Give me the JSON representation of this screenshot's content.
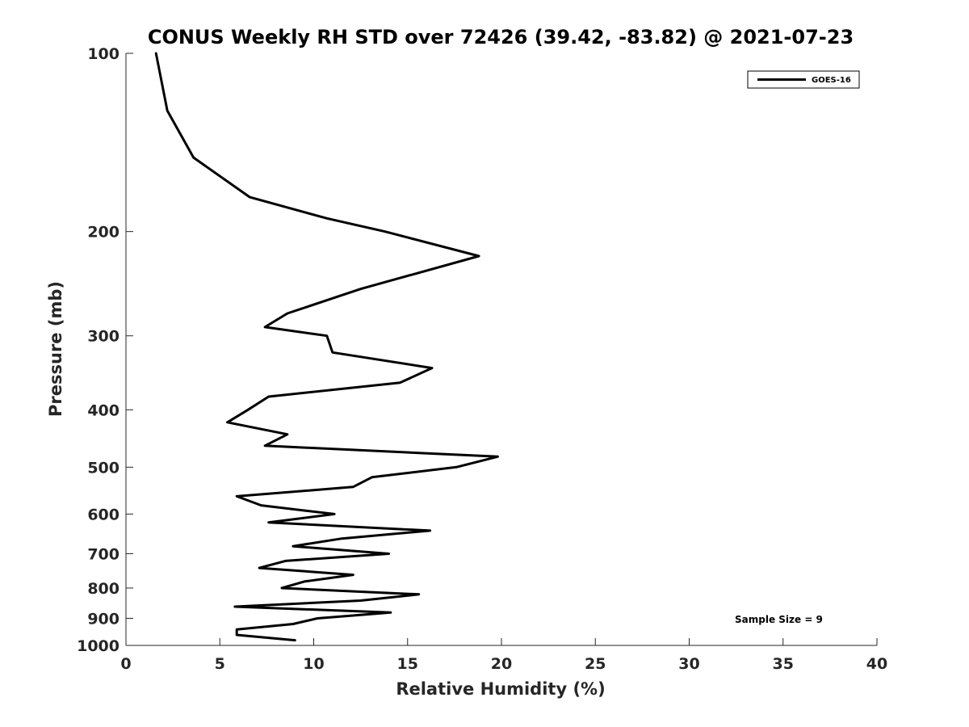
{
  "chart_data": {
    "type": "line",
    "title": "CONUS Weekly RH STD over 72426 (39.42, -83.82) @ 2021-07-23",
    "xlabel": "Relative Humidity (%)",
    "ylabel": "Pressure (mb)",
    "xlim": [
      0,
      40
    ],
    "ylim": [
      1000,
      100
    ],
    "yscale": "log",
    "y_reversed": true,
    "xticks": [
      "0",
      "5",
      "10",
      "15",
      "20",
      "25",
      "30",
      "35",
      "40"
    ],
    "yticks": [
      "100",
      "200",
      "300",
      "400",
      "500",
      "600",
      "700",
      "800",
      "900",
      "1000"
    ],
    "grid": false,
    "legend_position": "top-right",
    "series": [
      {
        "name": "GOES-16",
        "color": "#000000",
        "points": [
          [
            1.6,
            100
          ],
          [
            2.2,
            125
          ],
          [
            3.6,
            150
          ],
          [
            6.6,
            175
          ],
          [
            10.7,
            190
          ],
          [
            13.8,
            200
          ],
          [
            18.8,
            220
          ],
          [
            12.5,
            250
          ],
          [
            8.6,
            275
          ],
          [
            7.4,
            290
          ],
          [
            10.7,
            300
          ],
          [
            11.0,
            320
          ],
          [
            16.3,
            340
          ],
          [
            14.6,
            360
          ],
          [
            7.6,
            380
          ],
          [
            6.5,
            400
          ],
          [
            5.4,
            420
          ],
          [
            8.6,
            440
          ],
          [
            7.4,
            460
          ],
          [
            19.8,
            480
          ],
          [
            17.6,
            500
          ],
          [
            13.1,
            520
          ],
          [
            12.1,
            540
          ],
          [
            5.9,
            560
          ],
          [
            7.2,
            580
          ],
          [
            11.1,
            600
          ],
          [
            7.6,
            620
          ],
          [
            16.2,
            640
          ],
          [
            11.5,
            660
          ],
          [
            8.9,
            680
          ],
          [
            14.0,
            700
          ],
          [
            8.5,
            720
          ],
          [
            7.1,
            740
          ],
          [
            12.1,
            760
          ],
          [
            9.5,
            780
          ],
          [
            8.3,
            800
          ],
          [
            15.6,
            820
          ],
          [
            12.5,
            840
          ],
          [
            5.8,
            860
          ],
          [
            14.1,
            880
          ],
          [
            10.2,
            900
          ],
          [
            8.9,
            920
          ],
          [
            5.9,
            940
          ],
          [
            5.9,
            960
          ],
          [
            9.0,
            980
          ]
        ]
      }
    ],
    "annotation": "Sample Size = 9"
  }
}
